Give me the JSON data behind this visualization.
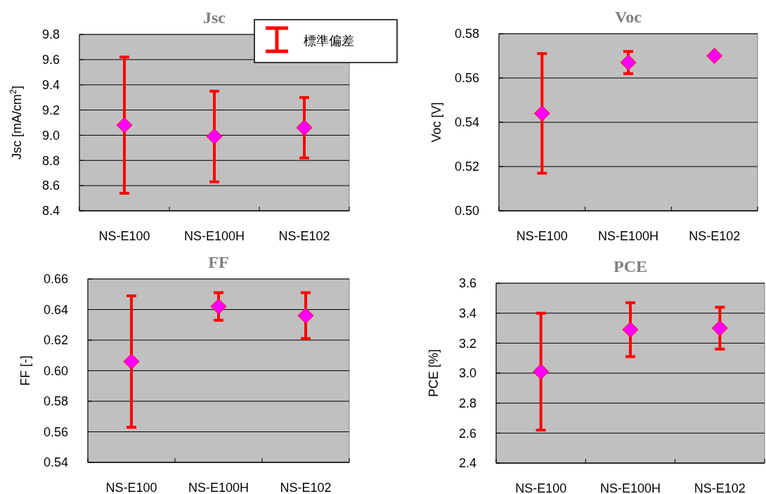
{
  "chart_data": [
    {
      "type": "scatter",
      "title": "Jsc",
      "ylabel": "Jsc [mA/cm$^{2}$]",
      "categories": [
        "NS-E100",
        "NS-E100H",
        "NS-E102"
      ],
      "series": [
        {
          "name": "標準偏差",
          "color": "#ff00ff",
          "values": [
            9.08,
            8.99,
            9.06
          ],
          "errors": [
            0.54,
            0.36,
            0.24
          ]
        }
      ],
      "ylim": [
        8.4,
        9.8
      ],
      "yticks": [
        8.4,
        8.6,
        8.8,
        {
          "value": 9.0,
          "label": "9.0"
        },
        9.2,
        9.4,
        9.6,
        9.8
      ],
      "grid": "y",
      "marker": "diamond",
      "legend": "top right"
    },
    {
      "type": "scatter",
      "title": "Voc",
      "ylabel": "Voc [V]",
      "categories": [
        "NS-E100",
        "NS-E100H",
        "NS-E102"
      ],
      "series": [
        {
          "color": "#ff00ff",
          "values": [
            0.544,
            0.567,
            0.57
          ],
          "errors": [
            0.027,
            0.005,
            null
          ]
        }
      ],
      "ylim": [
        0.5,
        0.58
      ],
      "yticks": [
        {
          "value": 0.5,
          "label": "0.50"
        },
        0.52,
        0.54,
        0.56,
        0.58
      ],
      "grid": "y",
      "marker": "diamond"
    },
    {
      "type": "scatter",
      "title": "FF",
      "ylabel": "FF [-]",
      "categories": [
        "NS-E100",
        "NS-E100H",
        "NS-E102"
      ],
      "series": [
        {
          "color": "#ff00ff",
          "values": [
            0.606,
            0.642,
            0.636
          ],
          "errors": [
            0.043,
            0.009,
            0.015
          ]
        }
      ],
      "ylim": [
        0.54,
        0.66
      ],
      "yticks": [
        0.54,
        0.56,
        0.58,
        {
          "value": 0.6,
          "label": "0.60"
        },
        0.62,
        0.64,
        0.66
      ],
      "grid": "y",
      "marker": "diamond"
    },
    {
      "type": "scatter",
      "title": "PCE",
      "ylabel": "PCE [%]",
      "categories": [
        "NS-E100",
        "NS-E100H",
        "NS-E102"
      ],
      "series": [
        {
          "color": "#ff00ff",
          "values": [
            3.01,
            3.29,
            3.3
          ],
          "errors": [
            0.39,
            0.18,
            0.14
          ]
        }
      ],
      "ylim": [
        2.4,
        3.6
      ],
      "yticks": [
        2.4,
        2.6,
        2.8,
        {
          "value": 3.0,
          "label": "3.0"
        },
        3.2,
        3.4,
        3.6
      ],
      "grid": "y",
      "marker": "diamond"
    }
  ]
}
